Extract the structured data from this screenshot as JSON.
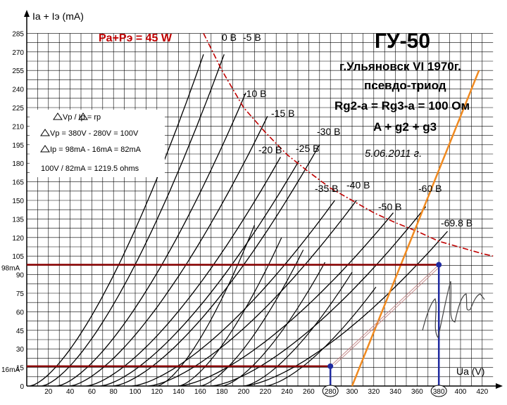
{
  "chart_data": {
    "type": "line",
    "ylabel": "Ia + Iэ (mA)",
    "xlabel": "Ua (V)",
    "xlim": [
      0,
      430
    ],
    "ylim": [
      0,
      285
    ],
    "x_ticks": [
      0,
      20,
      40,
      60,
      80,
      100,
      120,
      140,
      160,
      180,
      200,
      220,
      240,
      260,
      280,
      300,
      320,
      340,
      360,
      380,
      400,
      420
    ],
    "y_ticks": [
      0,
      15,
      30,
      45,
      60,
      75,
      90,
      105,
      120,
      135,
      150,
      165,
      180,
      195,
      210,
      225,
      240,
      255,
      270,
      285
    ],
    "grid": true,
    "title": "ГУ-50",
    "subtitle_lines": [
      "г.Ульяновск VI 1970г.",
      "псевдо-триод",
      "Rg2-a = Rg3-a = 100 Ом",
      "A + g2 + g3",
      "5.06.2011 г."
    ],
    "power_label": "Pa+Pэ = 45 W",
    "power_curve": [
      [
        163,
        285
      ],
      [
        180,
        255
      ],
      [
        200,
        225
      ],
      [
        220,
        205
      ],
      [
        240,
        187
      ],
      [
        260,
        173
      ],
      [
        280,
        160
      ],
      [
        300,
        150
      ],
      [
        320,
        140
      ],
      [
        340,
        132
      ],
      [
        360,
        125
      ],
      [
        380,
        117
      ],
      [
        400,
        112
      ],
      [
        420,
        107
      ],
      [
        430,
        105
      ]
    ],
    "series": [
      {
        "name": "0 В",
        "bias": 0,
        "end": [
          163,
          268
        ]
      },
      {
        "name": "-5 В",
        "bias": 5,
        "end": [
          182,
          268
        ]
      },
      {
        "name": "-10 В",
        "bias": 10,
        "end": [
          202,
          237
        ]
      },
      {
        "name": "-15 В",
        "bias": 15,
        "end": [
          222,
          218
        ]
      },
      {
        "name": "-20 В",
        "bias": 20,
        "end": [
          234,
          185
        ]
      },
      {
        "name": "-25 В",
        "bias": 25,
        "end": [
          251,
          182
        ]
      },
      {
        "name": "-30 В",
        "bias": 30,
        "end": [
          270,
          195
        ]
      },
      {
        "name": "-35 В",
        "bias": 35,
        "end": [
          284,
          150
        ]
      },
      {
        "name": "-40 В",
        "bias": 40,
        "end": [
          304,
          150
        ]
      },
      {
        "name": "-50 В",
        "bias": 50,
        "end": [
          338,
          140
        ]
      },
      {
        "name": "-60 В",
        "bias": 60,
        "end": [
          368,
          145
        ]
      },
      {
        "name": "-69.8 В",
        "bias": 69.8,
        "end": [
          388,
          125
        ]
      }
    ],
    "extra_curves_end": [
      [
        120,
        180
      ],
      [
        140,
        180
      ],
      [
        160,
        180
      ],
      [
        180,
        180
      ],
      [
        200,
        180
      ],
      [
        220,
        180
      ]
    ],
    "load_line": [
      [
        300,
        0
      ],
      [
        417,
        255
      ]
    ],
    "load_line_color": "#f08a20",
    "operating_points": [
      {
        "x": 280,
        "y": 16,
        "label": "16mA",
        "x_label": "280"
      },
      {
        "x": 380,
        "y": 98,
        "label": "98mA",
        "x_label": "380"
      }
    ],
    "annotations": {
      "formula": "Vp / Ip = rp",
      "dvp": "Vp = 380V - 280V = 100V",
      "dip": "Ip = 98mA - 16mA = 82mA",
      "result": "100V / 82mA = 1219.5 ohms"
    },
    "colors": {
      "grid": "#000000",
      "curves": "#000000",
      "power": "#c00000",
      "markers": "#8b0000",
      "verticals": "#1f2aa0",
      "load": "#f08a20"
    }
  }
}
